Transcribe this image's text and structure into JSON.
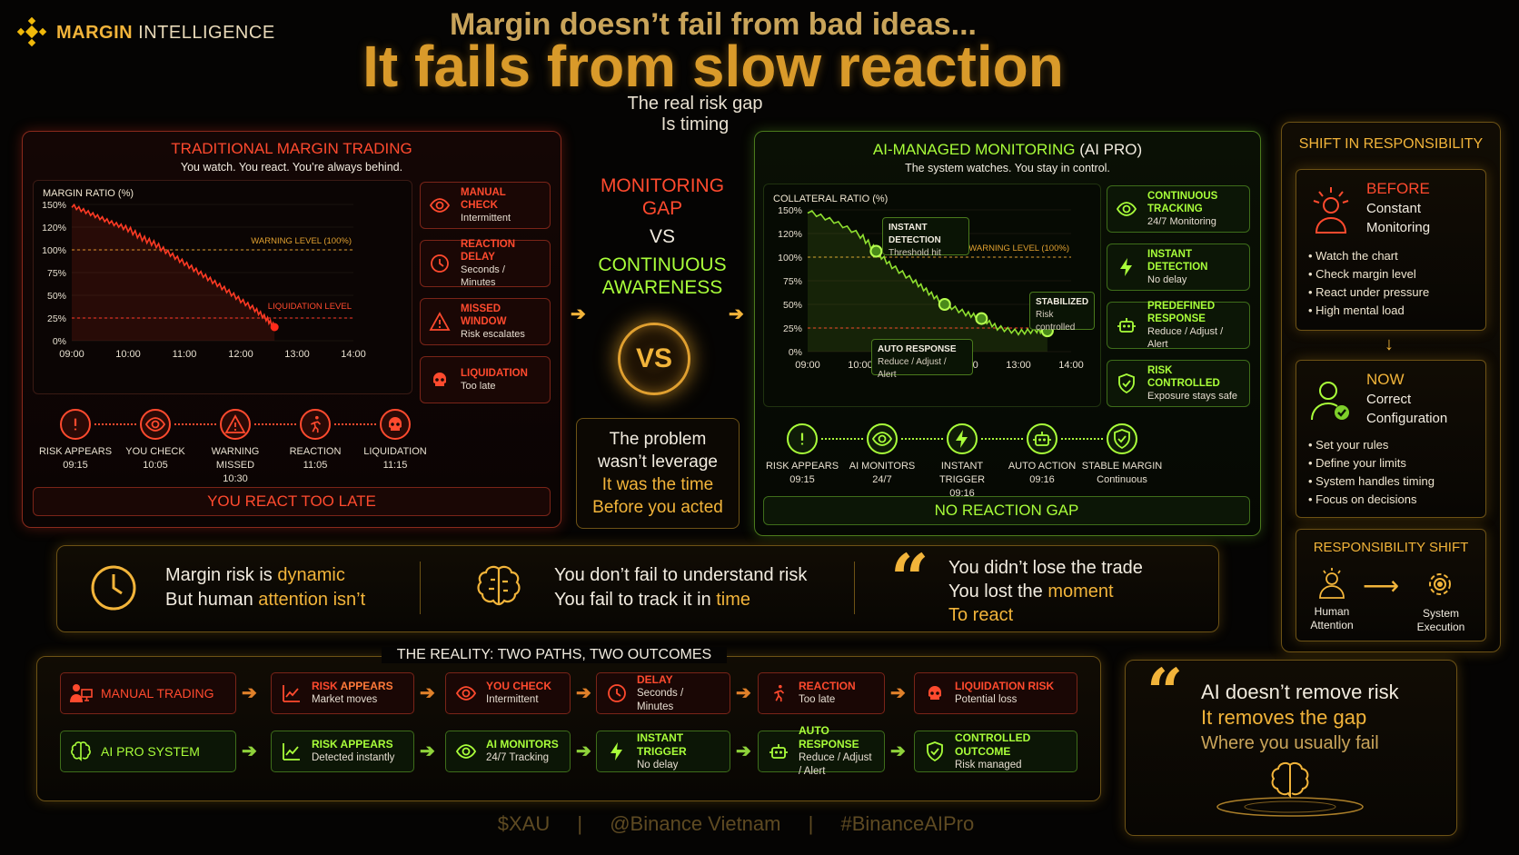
{
  "brand": {
    "name_bold": "MARGIN",
    "name_light": "INTELLIGENCE"
  },
  "header": {
    "line1": "Margin doesn’t fail from bad ideas...",
    "line2": "It fails from slow reaction",
    "sub1": "The real risk gap",
    "sub2": "Is timing"
  },
  "traditional": {
    "title": "TRADITIONAL MARGIN TRADING",
    "subtitle": "You watch. You react. You’re always behind.",
    "chart_label": "MARGIN RATIO (%)",
    "warning": "WARNING LEVEL (100%)",
    "liquidation": "LIQUIDATION LEVEL",
    "side": [
      {
        "t1": "MANUAL CHECK",
        "t2": "Intermittent",
        "icon": "eye-icon"
      },
      {
        "t1": "REACTION DELAY",
        "t2": "Seconds / Minutes",
        "icon": "clock-icon"
      },
      {
        "t1": "MISSED WINDOW",
        "t2": "Risk escalates",
        "icon": "warning-icon"
      },
      {
        "t1": "LIQUIDATION",
        "t2": "Too late",
        "icon": "skull-icon"
      }
    ],
    "steps": [
      {
        "l1": "RISK APPEARS",
        "l2": "09:15"
      },
      {
        "l1": "YOU CHECK",
        "l2": "10:05"
      },
      {
        "l1": "WARNING MISSED",
        "l2": "10:30"
      },
      {
        "l1": "REACTION",
        "l2": "11:05"
      },
      {
        "l1": "LIQUIDATION",
        "l2": "11:15"
      }
    ],
    "footer": "YOU REACT TOO LATE"
  },
  "middle": {
    "gap1": "MONITORING",
    "gap2": "GAP",
    "vs": "VS",
    "cont1": "CONTINUOUS",
    "cont2": "AWARENESS",
    "badge": "VS",
    "box": [
      "The problem",
      "wasn’t leverage",
      "It was the time",
      "Before you acted"
    ]
  },
  "ai": {
    "title": "AI-MANAGED MONITORING",
    "title_suffix": "(AI PRO)",
    "subtitle": "The system watches. You stay in control.",
    "chart_label": "COLLATERAL RATIO (%)",
    "warning": "WARNING LEVEL (100%)",
    "callout_detect_1": "INSTANT DETECTION",
    "callout_detect_2": "Threshold hit",
    "callout_stable_1": "STABILIZED",
    "callout_stable_2": "Risk controlled",
    "callout_auto_1": "AUTO RESPONSE",
    "callout_auto_2": "Reduce / Adjust / Alert",
    "side": [
      {
        "t1": "CONTINUOUS TRACKING",
        "t2": "24/7 Monitoring",
        "icon": "eye-icon"
      },
      {
        "t1": "INSTANT DETECTION",
        "t2": "No delay",
        "icon": "lightning-icon"
      },
      {
        "t1": "PREDEFINED RESPONSE",
        "t2": "Reduce / Adjust / Alert",
        "icon": "robot-icon"
      },
      {
        "t1": "RISK CONTROLLED",
        "t2": "Exposure stays safe",
        "icon": "shield-icon"
      }
    ],
    "steps": [
      {
        "l1": "RISK APPEARS",
        "l2": "09:15"
      },
      {
        "l1": "AI MONITORS",
        "l2": "24/7"
      },
      {
        "l1": "INSTANT TRIGGER",
        "l2": "09:16"
      },
      {
        "l1": "AUTO ACTION",
        "l2": "09:16"
      },
      {
        "l1": "STABLE MARGIN",
        "l2": "Continuous"
      }
    ],
    "footer": "NO REACTION GAP"
  },
  "responsibility": {
    "title": "SHIFT IN RESPONSIBILITY",
    "before_label": "BEFORE",
    "before_l1": "Constant",
    "before_l2": "Monitoring",
    "before_items": [
      "Watch the chart",
      "Check margin level",
      "React under pressure",
      "High mental load"
    ],
    "now_label": "NOW",
    "now_l1": "Correct",
    "now_l2": "Configuration",
    "now_items": [
      "Set your rules",
      "Define your limits",
      "System handles timing",
      "Focus on decisions"
    ],
    "shift_title": "RESPONSIBILITY SHIFT",
    "human_1": "Human",
    "human_2": "Attention",
    "system_1": "System",
    "system_2": "Execution"
  },
  "insights": {
    "a1": "Margin risk is ",
    "a1h": "dynamic",
    "a2": "But human ",
    "a2h": "attention isn’t",
    "b1": "You don’t fail to understand risk",
    "b2": "You fail to track it in ",
    "b2h": "time",
    "c1": "You didn’t lose the trade",
    "c2": "You lost the ",
    "c2h": "moment",
    "c3": "To react"
  },
  "reality": {
    "title": "THE REALITY: TWO PATHS, TWO OUTCOMES",
    "manual_label": "MANUAL TRADING",
    "ai_label": "AI PRO SYSTEM",
    "manual": [
      {
        "t1a": "RISK ",
        "t1b": "APPEARS",
        "t2": "Market moves"
      },
      {
        "t1a": "YOU CHECK",
        "t1b": "",
        "t2": "Intermittent"
      },
      {
        "t1a": "DELAY",
        "t1b": "",
        "t2": "Seconds / Minutes"
      },
      {
        "t1a": "REACTION",
        "t1b": "",
        "t2": "Too late"
      },
      {
        "t1a": "LIQUIDATION RISK",
        "t1b": "",
        "t2": "Potential loss"
      }
    ],
    "ai": [
      {
        "t1": "RISK APPEARS",
        "t2": "Detected instantly"
      },
      {
        "t1": "AI MONITORS",
        "t2": "24/7 Tracking"
      },
      {
        "t1": "INSTANT TRIGGER",
        "t2": "No delay"
      },
      {
        "t1": "AUTO RESPONSE",
        "t2": "Reduce / Adjust / Alert"
      },
      {
        "t1": "CONTROLLED OUTCOME",
        "t2": "Risk managed"
      }
    ]
  },
  "quote": {
    "l1": "AI doesn’t remove risk",
    "l2": "It removes the gap",
    "l3": "Where you usually fail"
  },
  "footer": {
    "t1": "$XAU",
    "sep": "|",
    "t2": "@Binance Vietnam",
    "t3": "#BinanceAIPro"
  },
  "colors": {
    "red": "#ff4a2e",
    "green": "#a9ff3a",
    "gold": "#f2b43a"
  },
  "chart_data": [
    {
      "type": "line",
      "ylabel": "MARGIN RATIO (%)",
      "x_ticks": [
        "09:00",
        "10:00",
        "11:00",
        "12:00",
        "13:00",
        "14:00"
      ],
      "y_ticks": [
        "150%",
        "120%",
        "100%",
        "75%",
        "50%",
        "25%",
        "0%"
      ],
      "ylim": [
        0,
        150
      ],
      "series": [
        {
          "x": [
            0,
            0.25,
            0.5,
            0.75,
            1,
            1.25,
            1.5,
            1.75,
            2,
            2.25,
            2.5,
            2.75,
            3,
            3.25,
            3.45,
            3.6
          ],
          "values": [
            148,
            140,
            132,
            124,
            118,
            110,
            104,
            95,
            85,
            75,
            65,
            55,
            44,
            34,
            24,
            15
          ]
        }
      ],
      "thresholds": [
        {
          "value": 100,
          "label": "WARNING LEVEL (100%)"
        },
        {
          "value": 25,
          "label": "LIQUIDATION LEVEL"
        }
      ],
      "grid": true
    },
    {
      "type": "line",
      "ylabel": "COLLATERAL RATIO (%)",
      "x_ticks": [
        "09:00",
        "10:00",
        "11:00",
        "12:00",
        "13:00",
        "14:00"
      ],
      "y_ticks": [
        "150%",
        "120%",
        "100%",
        "75%",
        "50%",
        "25%",
        "0%"
      ],
      "ylim": [
        0,
        150
      ],
      "series": [
        {
          "x": [
            0,
            0.5,
            1,
            1.3,
            1.6,
            2,
            2.3,
            2.6,
            3,
            3.3,
            3.6,
            4,
            4.35,
            4.55
          ],
          "values": [
            148,
            135,
            118,
            105,
            90,
            75,
            62,
            50,
            40,
            35,
            25,
            20,
            22,
            22
          ]
        }
      ],
      "markers_x": [
        1.3,
        2.6,
        3.3,
        4.55
      ],
      "thresholds": [
        {
          "value": 100,
          "label": "WARNING LEVEL (100%)"
        },
        {
          "value": 25,
          "label": ""
        }
      ],
      "grid": true
    }
  ]
}
